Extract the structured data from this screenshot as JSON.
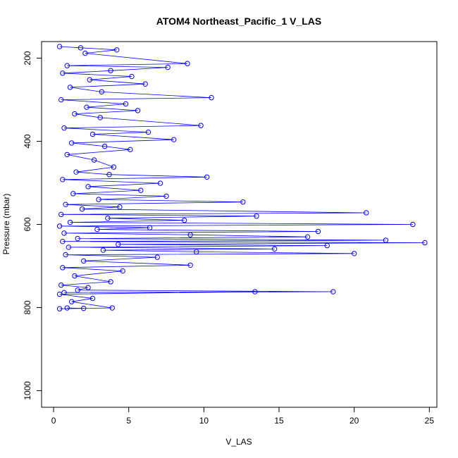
{
  "chart_data": {
    "type": "line",
    "title": "ATOM4 Northeast_Pacific_1 V_LAS",
    "xlabel": "V_LAS",
    "ylabel": "Pressure (mbar)",
    "xlim": [
      -0.8,
      25.5
    ],
    "ylim": [
      160,
      1040
    ],
    "y_inverted": true,
    "grid": false,
    "legend": "none",
    "xticks": [
      0,
      5,
      10,
      15,
      20,
      25
    ],
    "yticks": [
      200,
      400,
      600,
      800,
      1000
    ],
    "series": [
      {
        "color": "#0000ff",
        "marker": "open-circle",
        "points": [
          [
            0.4,
            172
          ],
          [
            1.8,
            175
          ],
          [
            4.2,
            180
          ],
          [
            2.1,
            188
          ],
          [
            8.9,
            213
          ],
          [
            0.9,
            218
          ],
          [
            7.6,
            222
          ],
          [
            3.8,
            230
          ],
          [
            0.6,
            236
          ],
          [
            5.2,
            244
          ],
          [
            2.4,
            252
          ],
          [
            6.1,
            262
          ],
          [
            1.1,
            270
          ],
          [
            3.2,
            281
          ],
          [
            10.5,
            295
          ],
          [
            0.5,
            300
          ],
          [
            4.8,
            310
          ],
          [
            2.2,
            318
          ],
          [
            5.6,
            326
          ],
          [
            1.4,
            334
          ],
          [
            3.1,
            343
          ],
          [
            9.8,
            362
          ],
          [
            0.7,
            368
          ],
          [
            6.3,
            378
          ],
          [
            2.6,
            383
          ],
          [
            8.0,
            396
          ],
          [
            1.2,
            404
          ],
          [
            3.4,
            412
          ],
          [
            5.1,
            420
          ],
          [
            0.9,
            432
          ],
          [
            2.7,
            445
          ],
          [
            4.0,
            462
          ],
          [
            1.5,
            474
          ],
          [
            3.7,
            480
          ],
          [
            10.2,
            486
          ],
          [
            0.6,
            492
          ],
          [
            7.1,
            501
          ],
          [
            2.3,
            509
          ],
          [
            5.8,
            518
          ],
          [
            1.3,
            526
          ],
          [
            7.5,
            532
          ],
          [
            3.0,
            540
          ],
          [
            12.6,
            546
          ],
          [
            0.8,
            552
          ],
          [
            4.4,
            558
          ],
          [
            1.9,
            563
          ],
          [
            20.8,
            572
          ],
          [
            0.5,
            576
          ],
          [
            13.5,
            580
          ],
          [
            3.6,
            585
          ],
          [
            8.7,
            590
          ],
          [
            1.1,
            595
          ],
          [
            23.9,
            600
          ],
          [
            0.4,
            604
          ],
          [
            6.4,
            608
          ],
          [
            2.9,
            612
          ],
          [
            17.6,
            617
          ],
          [
            0.7,
            621
          ],
          [
            9.1,
            625
          ],
          [
            16.9,
            630
          ],
          [
            1.6,
            634
          ],
          [
            22.1,
            638
          ],
          [
            0.6,
            641
          ],
          [
            24.7,
            644
          ],
          [
            4.3,
            648
          ],
          [
            18.2,
            651
          ],
          [
            1.0,
            655
          ],
          [
            14.7,
            659
          ],
          [
            3.3,
            662
          ],
          [
            9.5,
            666
          ],
          [
            20.0,
            670
          ],
          [
            0.8,
            673
          ],
          [
            6.9,
            679
          ],
          [
            2.0,
            688
          ],
          [
            9.1,
            698
          ],
          [
            0.6,
            704
          ],
          [
            4.6,
            712
          ],
          [
            1.4,
            724
          ],
          [
            3.8,
            738
          ],
          [
            0.5,
            746
          ],
          [
            2.3,
            752
          ],
          [
            1.6,
            758
          ],
          [
            18.6,
            762
          ],
          [
            0.7,
            764
          ],
          [
            13.4,
            762
          ],
          [
            0.4,
            768
          ],
          [
            2.6,
            778
          ],
          [
            1.2,
            786
          ],
          [
            3.9,
            801
          ],
          [
            0.4,
            803
          ],
          [
            2.0,
            802
          ],
          [
            0.9,
            801
          ]
        ]
      }
    ]
  }
}
